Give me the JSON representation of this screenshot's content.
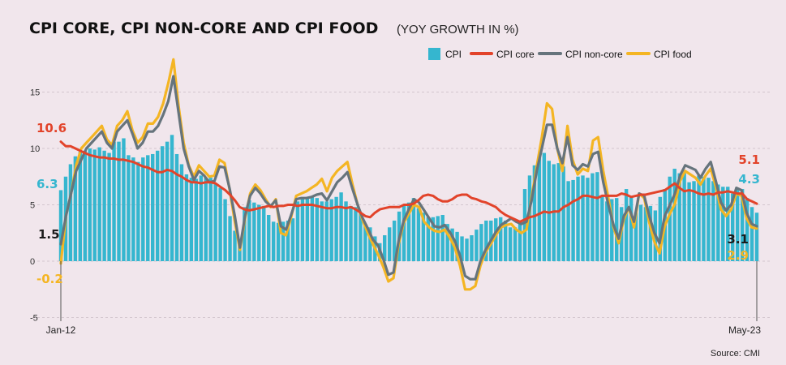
{
  "chart_data": {
    "type": "bar",
    "title": "CPI CORE, CPI NON-CORE AND CPI FOOD",
    "subtitle": "(YOY GROWTH IN %)",
    "source": "Source:  CMI",
    "x_start": "Jan-12",
    "x_end": "May-23",
    "y_ticks": [
      "15",
      "10",
      "5",
      "0",
      "-5"
    ],
    "ylim": [
      -5,
      17
    ],
    "grid": true,
    "legend_position": "top-right",
    "legend": [
      {
        "label": "CPI",
        "kind": "bar",
        "color": "#35b6cf"
      },
      {
        "label": "CPI core",
        "kind": "line",
        "color": "#e2432a"
      },
      {
        "label": "CPI non-core",
        "kind": "line",
        "color": "#66747c"
      },
      {
        "label": "CPI food",
        "kind": "line",
        "color": "#f4b523"
      }
    ],
    "annotations": {
      "core_start": "10.6",
      "cpi_start": "6.3",
      "noncore_start": "1.5",
      "food_start": "-0.2",
      "core_end": "5.1",
      "cpi_end": "4.3",
      "noncore_end": "3.1",
      "food_end": "2.9"
    },
    "series": [
      {
        "name": "CPI",
        "type": "bar",
        "color": "#35b6cf",
        "values": [
          6.3,
          7.5,
          8.6,
          9.3,
          9.7,
          9.8,
          10.0,
          9.9,
          10.1,
          9.8,
          9.6,
          10.6,
          10.6,
          10.9,
          9.4,
          9.2,
          8.8,
          9.2,
          9.4,
          9.5,
          9.8,
          10.2,
          10.6,
          11.2,
          9.5,
          8.6,
          7.7,
          7.4,
          7.3,
          7.6,
          7.4,
          7.4,
          6.9,
          6.5,
          5.5,
          4.0,
          2.7,
          1.9,
          4.8,
          5.4,
          5.2,
          5.0,
          4.9,
          4.1,
          3.5,
          3.4,
          3.5,
          3.6,
          3.8,
          5.3,
          5.5,
          5.6,
          5.7,
          5.6,
          5.3,
          5.3,
          5.5,
          5.7,
          6.1,
          5.3,
          4.9,
          4.8,
          4.3,
          3.3,
          3.0,
          2.2,
          1.6,
          2.3,
          3.0,
          3.6,
          4.4,
          4.9,
          5.2,
          5.6,
          4.7,
          4.3,
          3.9,
          3.9,
          4.0,
          4.1,
          3.3,
          2.9,
          2.6,
          2.2,
          2.0,
          2.3,
          2.8,
          3.3,
          3.6,
          3.6,
          3.8,
          3.9,
          3.6,
          3.0,
          3.0,
          3.5,
          6.4,
          7.6,
          8.5,
          9.2,
          9.6,
          8.9,
          8.6,
          8.7,
          8.4,
          7.1,
          7.2,
          7.5,
          7.6,
          7.4,
          7.8,
          7.9,
          5.8,
          5.3,
          5.5,
          5.6,
          4.8,
          6.4,
          5.8,
          4.3,
          5.0,
          4.8,
          4.9,
          4.5,
          5.7,
          6.4,
          7.5,
          8.2,
          7.8,
          7.8,
          7.0,
          7.1,
          7.6,
          7.5,
          7.4,
          7.1,
          6.8,
          6.6,
          6.6,
          6.0,
          6.5,
          6.4,
          5.6,
          4.8,
          4.3
        ]
      },
      {
        "name": "CPI core",
        "type": "line",
        "color": "#e2432a",
        "values": [
          10.6,
          10.2,
          10.2,
          10.0,
          9.8,
          9.6,
          9.4,
          9.3,
          9.2,
          9.2,
          9.1,
          9.1,
          9.0,
          9.0,
          8.9,
          8.8,
          8.6,
          8.4,
          8.3,
          8.1,
          7.9,
          7.9,
          8.1,
          8.0,
          7.7,
          7.5,
          7.2,
          7.0,
          7.0,
          6.9,
          7.0,
          7.0,
          6.9,
          6.6,
          6.3,
          5.9,
          5.4,
          4.8,
          4.6,
          4.5,
          4.6,
          4.7,
          4.8,
          4.9,
          4.8,
          4.9,
          4.9,
          5.0,
          5.0,
          4.9,
          5.0,
          5.0,
          5.0,
          4.9,
          4.8,
          4.7,
          4.7,
          4.8,
          4.8,
          4.7,
          4.8,
          4.6,
          4.3,
          4.0,
          3.9,
          4.3,
          4.6,
          4.7,
          4.8,
          4.8,
          4.8,
          5.0,
          5.0,
          5.1,
          5.4,
          5.8,
          5.9,
          5.8,
          5.5,
          5.3,
          5.3,
          5.5,
          5.8,
          5.9,
          5.9,
          5.6,
          5.5,
          5.3,
          5.2,
          5.0,
          4.8,
          4.4,
          4.1,
          3.9,
          3.7,
          3.5,
          3.7,
          3.9,
          4.0,
          4.2,
          4.4,
          4.3,
          4.4,
          4.4,
          4.8,
          5.0,
          5.3,
          5.5,
          5.8,
          5.8,
          5.7,
          5.6,
          5.8,
          5.8,
          5.8,
          5.8,
          6.0,
          5.9,
          5.7,
          5.8,
          5.9,
          5.9,
          6.0,
          6.1,
          6.2,
          6.3,
          6.6,
          6.9,
          6.5,
          6.2,
          6.3,
          6.2,
          6.0,
          5.9,
          6.0,
          5.9,
          6.1,
          6.1,
          6.2,
          6.1,
          6.0,
          6.0,
          5.5,
          5.3,
          5.1
        ]
      },
      {
        "name": "CPI non-core",
        "type": "line",
        "color": "#66747c",
        "values": [
          1.5,
          4.0,
          6.0,
          8.0,
          9.0,
          10.0,
          10.5,
          11.0,
          11.5,
          10.5,
          10.0,
          11.5,
          12.0,
          12.5,
          11.3,
          10.0,
          10.5,
          11.5,
          11.5,
          12.0,
          13.0,
          14.2,
          16.4,
          13.2,
          10.0,
          8.4,
          7.2,
          8.0,
          7.6,
          7.0,
          7.1,
          8.4,
          8.3,
          6.4,
          4.0,
          1.2,
          4.0,
          5.8,
          6.5,
          6.0,
          5.3,
          4.9,
          5.4,
          3.1,
          2.8,
          4.1,
          5.5,
          5.6,
          5.6,
          5.7,
          5.9,
          6.0,
          5.4,
          6.2,
          7.0,
          7.4,
          7.9,
          6.4,
          5.0,
          3.8,
          2.9,
          1.9,
          1.4,
          0.2,
          -1.2,
          -1.0,
          1.8,
          3.6,
          4.6,
          5.5,
          5.2,
          4.5,
          3.8,
          3.1,
          3.0,
          3.2,
          2.6,
          1.8,
          0.5,
          -1.3,
          -1.6,
          -1.6,
          0.0,
          1.0,
          1.8,
          2.6,
          3.2,
          3.5,
          3.8,
          3.5,
          3.3,
          3.5,
          5.4,
          8.0,
          10.0,
          12.1,
          12.1,
          10.0,
          8.7,
          11.0,
          8.5,
          8.1,
          8.6,
          8.4,
          9.5,
          9.7,
          7.0,
          5.0,
          3.2,
          2.0,
          4.0,
          4.8,
          3.5,
          6.0,
          5.8,
          4.0,
          2.5,
          1.6,
          4.0,
          5.0,
          6.0,
          7.6,
          8.5,
          8.3,
          8.1,
          7.4,
          8.2,
          8.8,
          7.1,
          5.2,
          4.5,
          5.0,
          6.5,
          6.3,
          4.3,
          3.3,
          3.1
        ]
      },
      {
        "name": "CPI food",
        "type": "line",
        "color": "#f4b523",
        "values": [
          -0.2,
          4.0,
          6.0,
          8.5,
          10.0,
          10.5,
          11.0,
          11.5,
          12.0,
          10.8,
          10.3,
          12.0,
          12.5,
          13.3,
          11.6,
          10.5,
          11.0,
          12.2,
          12.2,
          12.8,
          14.0,
          15.8,
          17.9,
          13.8,
          10.5,
          8.5,
          7.5,
          8.5,
          8.0,
          7.5,
          7.6,
          9.0,
          8.7,
          6.3,
          3.5,
          1.0,
          3.8,
          6.0,
          6.8,
          6.3,
          5.5,
          4.8,
          5.5,
          2.5,
          2.3,
          3.9,
          5.8,
          6.0,
          6.2,
          6.5,
          6.8,
          7.3,
          6.2,
          7.4,
          8.0,
          8.4,
          8.8,
          6.8,
          5.0,
          3.6,
          2.5,
          1.5,
          0.6,
          -0.5,
          -1.8,
          -1.5,
          1.5,
          3.4,
          4.2,
          5.0,
          4.8,
          3.5,
          3.0,
          2.7,
          2.6,
          2.8,
          2.1,
          1.2,
          -0.4,
          -2.5,
          -2.5,
          -2.2,
          -0.4,
          0.8,
          1.5,
          2.3,
          3.0,
          3.2,
          3.3,
          2.8,
          2.5,
          2.8,
          5.7,
          8.4,
          11.0,
          14.0,
          13.5,
          10.0,
          8.0,
          12.0,
          9.0,
          7.7,
          8.2,
          8.0,
          10.7,
          11.0,
          8.0,
          5.6,
          3.0,
          1.6,
          3.7,
          4.8,
          3.0,
          6.0,
          5.6,
          3.4,
          1.7,
          0.7,
          3.1,
          4.2,
          5.1,
          7.1,
          8.0,
          7.7,
          7.4,
          6.8,
          7.6,
          8.2,
          6.6,
          4.6,
          4.0,
          4.6,
          6.0,
          5.8,
          3.8,
          3.0,
          2.9
        ]
      }
    ]
  }
}
